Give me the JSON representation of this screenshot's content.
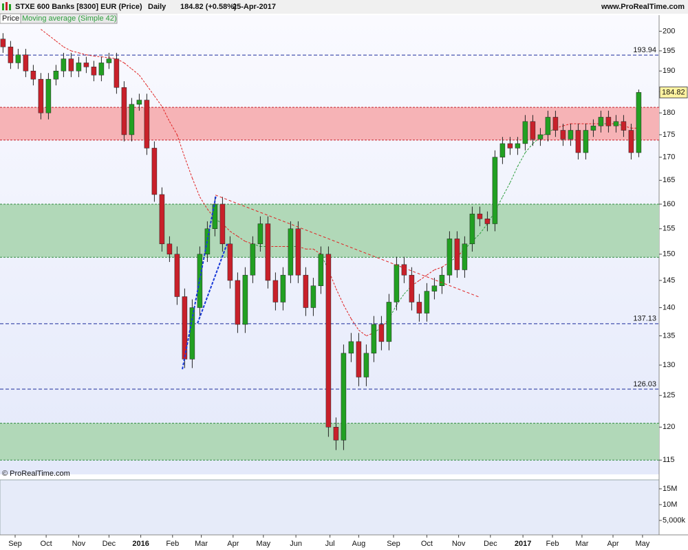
{
  "chart_data": {
    "type": "candlestick",
    "title": "STXE 600 Banks [8300] EUR (Price)",
    "period": "Daily",
    "last_quote": "184.82 (+0.58%)",
    "date": "25-Apr-2017",
    "source": "www.ProRealTime.com",
    "copyright": "© ProRealTime.com",
    "price_label": "Price",
    "log_scale": true,
    "up_color": "#22a022",
    "down_color": "#c8202a",
    "x": [
      2,
      7,
      12,
      17,
      22,
      27,
      32,
      37,
      42,
      47,
      52,
      57,
      62,
      67,
      72,
      77,
      82,
      87,
      92,
      97,
      102,
      107,
      112,
      117,
      122,
      127,
      132,
      137,
      142,
      147,
      152,
      157,
      162,
      167,
      172,
      177,
      182,
      187,
      192,
      197,
      202,
      207,
      212,
      217,
      222,
      227,
      232,
      237,
      242,
      247,
      252,
      257,
      262,
      267,
      272,
      277,
      282,
      287,
      292,
      297,
      302,
      307,
      312,
      317,
      322,
      327,
      332,
      337,
      342,
      347,
      352,
      357,
      362,
      367,
      372,
      377,
      382,
      387,
      392,
      397,
      402,
      407,
      412,
      417,
      422
    ],
    "open": [
      198,
      196,
      192,
      194,
      190,
      188,
      180,
      188,
      190,
      193,
      190,
      192,
      191,
      189,
      192,
      193,
      186,
      175,
      182,
      183,
      172,
      162,
      152,
      150,
      142,
      131,
      140,
      150,
      155,
      160,
      152,
      145,
      137,
      146,
      152,
      156,
      145,
      141,
      146,
      155,
      146,
      140,
      144,
      150,
      120,
      118,
      132,
      134,
      128,
      132,
      137,
      134,
      141,
      148,
      146,
      141,
      139,
      143,
      144,
      146,
      153,
      147,
      152,
      158,
      157,
      156,
      170,
      173,
      172,
      173,
      178,
      174,
      175,
      179,
      176,
      174,
      176,
      171,
      176,
      177,
      179,
      177,
      178,
      176,
      171
    ],
    "high": [
      199.5,
      197.5,
      195.5,
      195.5,
      191.5,
      189.5,
      189.5,
      191.5,
      194.5,
      194.5,
      193.5,
      193.5,
      192.5,
      193.5,
      194.5,
      194.5,
      187.5,
      183.5,
      184.5,
      184.5,
      173.5,
      163.5,
      153.5,
      151.5,
      143.5,
      141.5,
      151.5,
      156.5,
      161.5,
      161.5,
      153.5,
      146.5,
      147.5,
      153.5,
      157.5,
      157.5,
      146.5,
      147.5,
      156.5,
      156.5,
      147.5,
      145.5,
      151.5,
      151.5,
      121.5,
      133.5,
      135.5,
      135.5,
      133.5,
      138.5,
      138.5,
      142.5,
      149.5,
      149.5,
      147.5,
      142.5,
      144.5,
      145.5,
      147.5,
      154.5,
      154.5,
      153.5,
      159.5,
      159.5,
      158.5,
      171.5,
      174.5,
      174.5,
      174.5,
      179.5,
      179.5,
      176.5,
      180.5,
      180.5,
      177.5,
      177.5,
      177.5,
      177.5,
      178.5,
      180.5,
      180.5,
      179.5,
      179.5,
      177.5,
      185.5
    ],
    "low": [
      194.5,
      190.5,
      190.5,
      188.5,
      186.5,
      178.5,
      178.5,
      186.5,
      188.5,
      188.5,
      188.5,
      189.5,
      187.5,
      187.5,
      190.5,
      184.5,
      173.5,
      173.5,
      180.5,
      170.5,
      160.5,
      150.5,
      148.5,
      140.5,
      129.5,
      129.5,
      138.5,
      148.5,
      153.5,
      150.5,
      143.5,
      135.5,
      135.5,
      144.5,
      150.5,
      143.5,
      139.5,
      139.5,
      144.5,
      144.5,
      138.5,
      138.5,
      142.5,
      118.5,
      116.5,
      116.5,
      130.5,
      126.5,
      126.5,
      130.5,
      132.5,
      132.5,
      139.5,
      144.5,
      139.5,
      137.5,
      137.5,
      141.5,
      142.5,
      144.5,
      145.5,
      145.5,
      150.5,
      155.5,
      154.5,
      154.5,
      168.5,
      170.5,
      170.5,
      171.5,
      172.5,
      172.5,
      173.5,
      174.5,
      172.5,
      172.5,
      169.5,
      169.5,
      174.5,
      175.5,
      175.5,
      175.5,
      174.5,
      169.5,
      170
    ],
    "close": [
      196,
      192,
      194,
      190,
      188,
      180,
      188,
      190,
      193,
      190,
      192,
      191,
      189,
      192,
      193,
      186,
      175,
      182,
      183,
      172,
      162,
      152,
      150,
      142,
      131,
      140,
      150,
      155,
      160,
      152,
      145,
      137,
      146,
      152,
      156,
      145,
      141,
      146,
      155,
      146,
      140,
      144,
      150,
      120,
      118,
      132,
      134,
      128,
      132,
      137,
      134,
      141,
      148,
      146,
      141,
      139,
      143,
      144,
      146,
      153,
      147,
      152,
      158,
      157,
      156,
      170,
      173,
      172,
      173,
      178,
      174,
      175,
      179,
      176,
      174,
      176,
      171,
      176,
      177,
      179,
      177,
      178,
      176,
      171,
      184.82
    ],
    "moving_average": {
      "name": "Moving average (Simple 42)",
      "above_color": "#e02020",
      "below_color": "#2e9e3e",
      "values": [
        null,
        null,
        null,
        null,
        null,
        200.5,
        199,
        197.5,
        196,
        195,
        194.5,
        194,
        193.7,
        193.5,
        193.3,
        193,
        192,
        190.5,
        189,
        186.5,
        184,
        181.5,
        178,
        175,
        170,
        165.5,
        161.5,
        159,
        157,
        156,
        154.5,
        153.5,
        152.5,
        152,
        151.5,
        151.5,
        151.5,
        151.5,
        151.5,
        151.5,
        151,
        151,
        150,
        147,
        143.5,
        140.5,
        138,
        136,
        135,
        135.5,
        136.5,
        138,
        140.5,
        142.5,
        144,
        145,
        146,
        147,
        147.5,
        148.5,
        149.5,
        151,
        152.5,
        154,
        156,
        158.5,
        161.5,
        164.5,
        168,
        171,
        173,
        174.5,
        175.5,
        176.5,
        177,
        177.5,
        177.5,
        177.5,
        177.5,
        177.5,
        177.5,
        177.5,
        177,
        176.5,
        176.5
      ]
    },
    "xlim": [
      0,
      435.45
    ],
    "xticks": [
      {
        "value": 10,
        "label": "Sep"
      },
      {
        "value": 30.5,
        "label": "Oct"
      },
      {
        "value": 52,
        "label": "Nov"
      },
      {
        "value": 72,
        "label": "Dec"
      },
      {
        "value": 93,
        "label": "2016"
      },
      {
        "value": 114,
        "label": "Feb"
      },
      {
        "value": 133,
        "label": "Mar"
      },
      {
        "value": 154,
        "label": "Apr"
      },
      {
        "value": 174,
        "label": "May"
      },
      {
        "value": 195.5,
        "label": "Jun"
      },
      {
        "value": 218,
        "label": "Jul"
      },
      {
        "value": 237,
        "label": "Aug"
      },
      {
        "value": 260,
        "label": "Sep"
      },
      {
        "value": 282,
        "label": "Oct"
      },
      {
        "value": 303,
        "label": "Nov"
      },
      {
        "value": 324,
        "label": "Dec"
      },
      {
        "value": 345.5,
        "label": "2017"
      },
      {
        "value": 365,
        "label": "Feb"
      },
      {
        "value": 384.5,
        "label": "Mar"
      },
      {
        "value": 405,
        "label": "Apr"
      },
      {
        "value": 424.5,
        "label": "May"
      }
    ],
    "ylim": [
      112.9,
      204.2
    ],
    "yticks": [
      115,
      120,
      125,
      130,
      135,
      140,
      145,
      150,
      155,
      160,
      165,
      170,
      175,
      180,
      185,
      190,
      195,
      200
    ],
    "levels": [
      {
        "value": 193.94,
        "color": "#1a2a9a"
      },
      {
        "value": 137.13,
        "color": "#1a2a9a"
      },
      {
        "value": 126.03,
        "color": "#1a2a9a"
      }
    ],
    "zones": [
      {
        "range": [
          173.8,
          181.3
        ],
        "color": "#f6b3b6",
        "border": "#c8202a"
      },
      {
        "range": [
          149.4,
          160
        ],
        "color": "#b1d8b8",
        "border": "#2e8a3e"
      },
      {
        "range": [
          115,
          120.6
        ],
        "color": "#b1d8b8",
        "border": "#2e8a3e"
      }
    ],
    "trend_lines": [
      {
        "color": "#e02020",
        "x": [
          142.3,
          316.8
        ],
        "y": [
          161.9,
          141.9
        ]
      },
      {
        "color": "#1a3ad8",
        "x": [
          120.5,
          142.7
        ],
        "y": [
          129.3,
          161.8
        ]
      },
      {
        "color": "#1a3ad8",
        "x": [
          130.5,
          150
        ],
        "y": [
          137.2,
          152.0
        ]
      }
    ],
    "last_price_color": "#fff3a0",
    "volume": {
      "ylim": [
        430000,
        17830000
      ],
      "yticks": [
        {
          "value": 15000000,
          "label": "15M"
        },
        {
          "value": 10000000,
          "label": "10M"
        },
        {
          "value": 5000000,
          "label": "5,000k"
        }
      ]
    }
  }
}
